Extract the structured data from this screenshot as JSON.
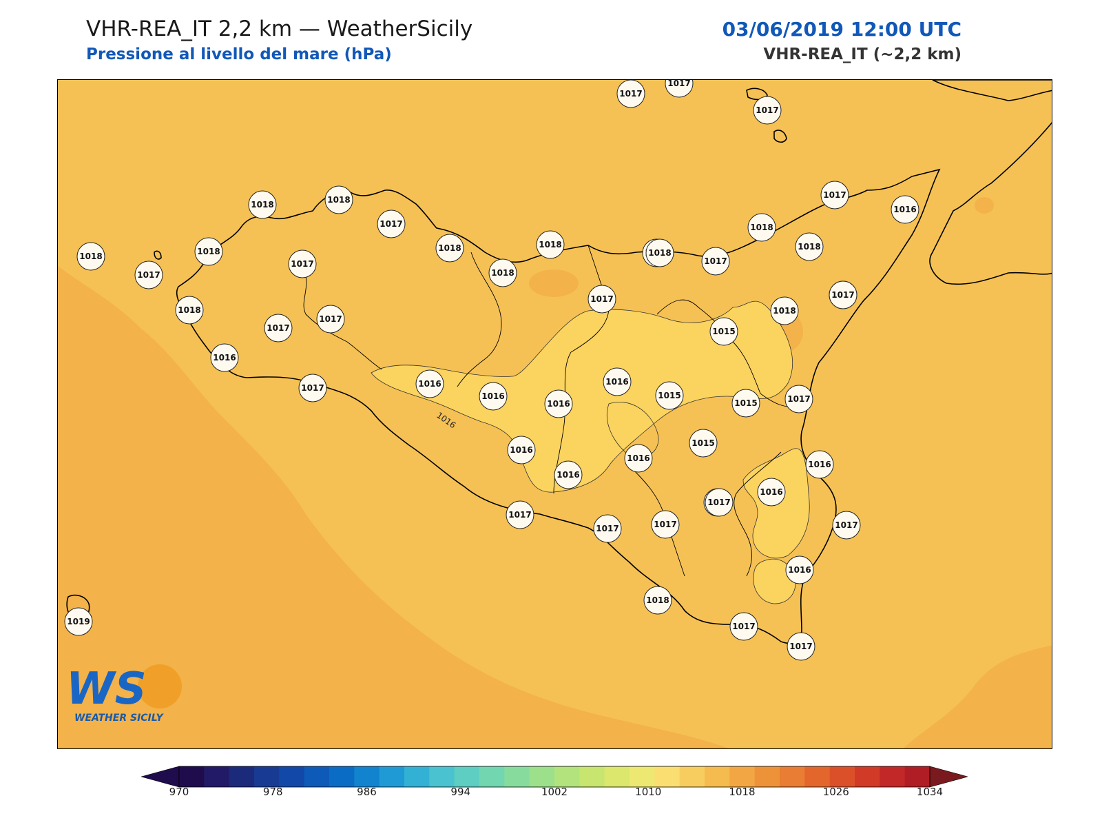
{
  "header": {
    "title": "VHR-REA_IT 2,2 km — WeatherSicily",
    "subtitle": "Pressione al livello del mare (hPa)",
    "datetime": "03/06/2019 12:00 UTC",
    "model": "VHR-REA_IT (~2,2 km)"
  },
  "map": {
    "background_color": "#f5c155",
    "contour_label": "1016",
    "stations": [
      "1017",
      "1017",
      "1017",
      "1017",
      "1016",
      "1018",
      "1018",
      "1017",
      "1018",
      "1018",
      "1017",
      "1018",
      "1018",
      "1017",
      "1018",
      "1018",
      "1017",
      "1018",
      "1018",
      "1017",
      "1017",
      "1018",
      "1017",
      "1018",
      "1016",
      "1015",
      "1018",
      "1017",
      "1017",
      "1016",
      "1016",
      "1016",
      "1016",
      "1015",
      "1015",
      "1017",
      "1017",
      "1015",
      "1016",
      "1016",
      "1016",
      "1016",
      "1017",
      "1016",
      "1017",
      "1017",
      "1017",
      "1017",
      "1016",
      "1017",
      "1018",
      "1017",
      "1017",
      "1019"
    ],
    "fields": [
      {
        "name": "lower-pressure-inland",
        "value_range": "1014-1016",
        "color": "#fbd35f"
      },
      {
        "name": "higher-pressure-sea",
        "value_range": "1018-1020",
        "color": "#f3b24a"
      }
    ]
  },
  "logo": {
    "text": "WEATHER SICILY",
    "letters": "WS"
  },
  "colorbar": {
    "labels": [
      "970",
      "978",
      "986",
      "994",
      "1002",
      "1010",
      "1018",
      "1026",
      "1034"
    ],
    "colors": [
      "#1f0c4d",
      "#221a66",
      "#1c2a7c",
      "#183a92",
      "#1248a8",
      "#0e5ab8",
      "#0a6cc4",
      "#1283ce",
      "#209ad4",
      "#33b1d4",
      "#4ac2cf",
      "#5ecdc2",
      "#72d6b0",
      "#87dc9d",
      "#9ce08b",
      "#b2e37c",
      "#c7e56f",
      "#dbe76d",
      "#ede872",
      "#fade72",
      "#f8cd60",
      "#f5bb4f",
      "#f2a644",
      "#ee923a",
      "#e97d33",
      "#e3672d",
      "#db5029",
      "#d03a27",
      "#c12827",
      "#b01d25"
    ]
  }
}
